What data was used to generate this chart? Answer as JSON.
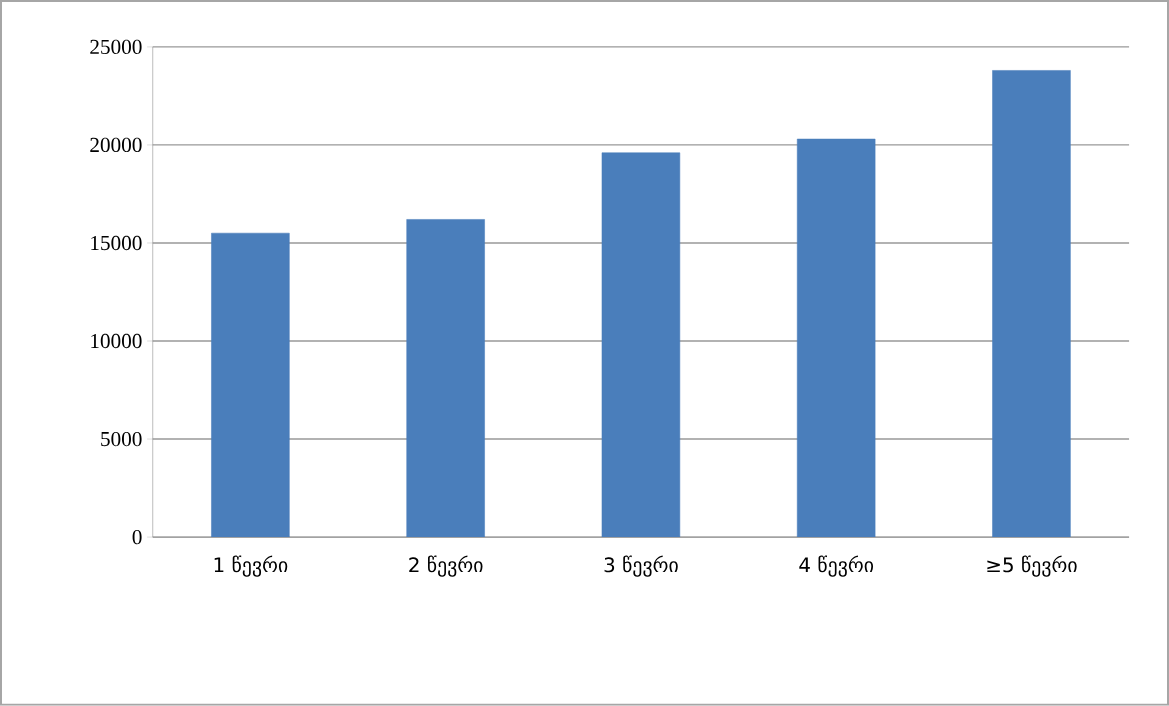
{
  "chart_data": {
    "type": "bar",
    "categories": [
      "1 წევრი",
      "2 წევრი",
      "3 წევრი",
      "4 წევრი",
      "≥5 წევრი"
    ],
    "values": [
      15500,
      16200,
      19600,
      20300,
      23800
    ],
    "color": "#4a7ebb",
    "ylim": [
      0,
      25000
    ],
    "yticks": [
      0,
      5000,
      10000,
      15000,
      20000,
      25000
    ],
    "grid": "y"
  }
}
